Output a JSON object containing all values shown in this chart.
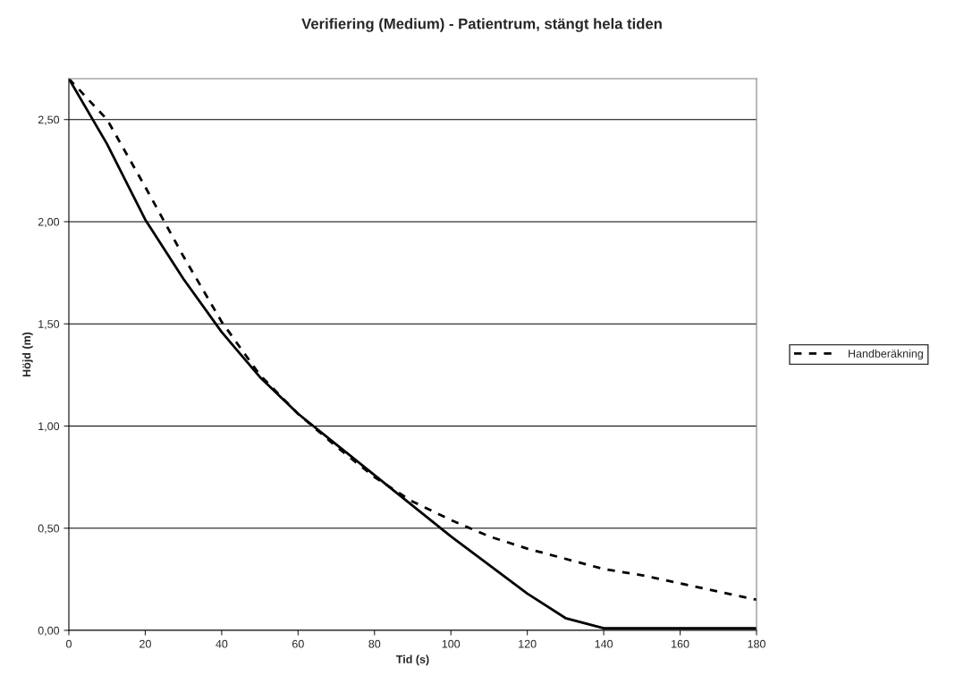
{
  "chart_data": {
    "type": "line",
    "title": "Verifiering (Medium) - Patientrum, stängt hela tiden",
    "xlabel": "Tid (s)",
    "ylabel": "Höjd (m)",
    "x": [
      0,
      10,
      20,
      30,
      40,
      50,
      60,
      70,
      80,
      90,
      100,
      110,
      120,
      130,
      140,
      150,
      160,
      170,
      180
    ],
    "series": [
      {
        "color": "#000000",
        "line_style": "solid",
        "values": [
          2.7,
          2.38,
          2.01,
          1.72,
          1.46,
          1.24,
          1.06,
          0.91,
          0.76,
          0.61,
          0.46,
          0.32,
          0.18,
          0.06,
          0.01,
          0.01,
          0.01,
          0.01,
          0.01
        ]
      },
      {
        "name": "Handberäkning",
        "color": "#000000",
        "line_style": "dashed",
        "values": [
          2.7,
          2.5,
          2.17,
          1.83,
          1.51,
          1.25,
          1.06,
          0.9,
          0.75,
          0.63,
          0.54,
          0.46,
          0.4,
          0.35,
          0.3,
          0.27,
          0.23,
          0.19,
          0.15
        ]
      }
    ],
    "xlim": [
      0,
      180
    ],
    "xticks": [
      0,
      20,
      40,
      60,
      80,
      100,
      120,
      140,
      160,
      180
    ],
    "ylim": [
      0,
      2.7
    ],
    "yticks": [
      {
        "value": 0,
        "label": "0,00"
      },
      {
        "value": 0.5,
        "label": "0,50"
      },
      {
        "value": 1,
        "label": "1,00"
      },
      {
        "value": 1.5,
        "label": "1,50"
      },
      {
        "value": 2,
        "label": "2,00"
      },
      {
        "value": 2.5,
        "label": "2,50"
      }
    ],
    "grid": "y",
    "legend": "right",
    "marker": "none"
  }
}
